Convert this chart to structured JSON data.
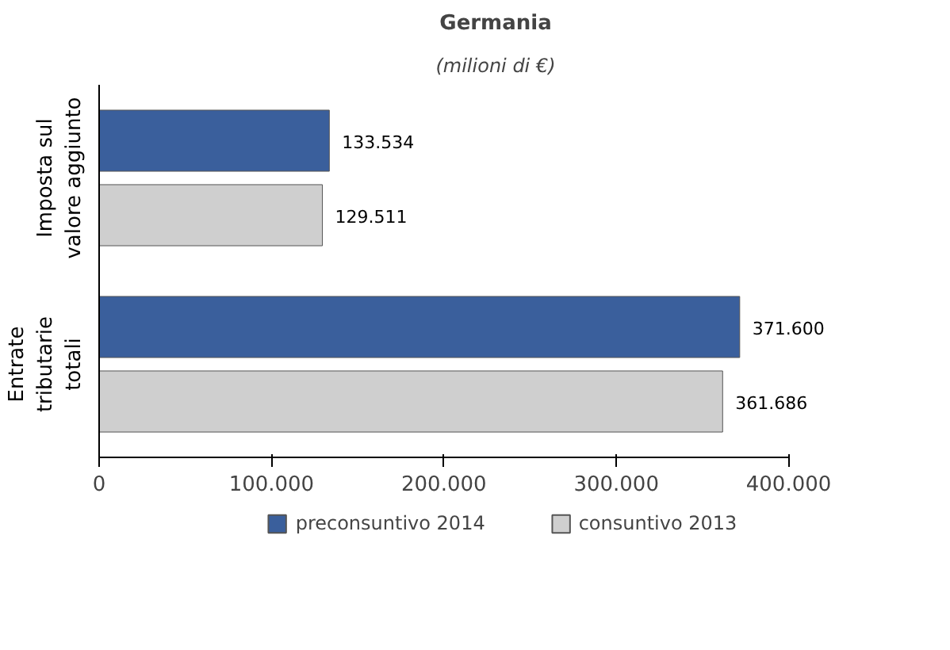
{
  "chart_data": {
    "type": "bar",
    "orientation": "horizontal",
    "title": "Germania",
    "subtitle": "(milioni di €)",
    "categories": [
      "Imposta sul valore aggiunto",
      "Entrate tributarie totali"
    ],
    "series": [
      {
        "name": "preconsuntivo 2014",
        "color": "#3a5f9c",
        "values": [
          133534,
          371600
        ],
        "value_labels": [
          "133.534",
          "371.600"
        ]
      },
      {
        "name": "consuntivo 2013",
        "color": "#cfcfcf",
        "values": [
          129511,
          361686
        ],
        "value_labels": [
          "129.511",
          "361.686"
        ]
      }
    ],
    "xlim": [
      0,
      400000
    ],
    "xticks": [
      0,
      {
        "value": 100000,
        "label": "100.000"
      },
      {
        "value": 200000,
        "label": "200.000"
      },
      {
        "value": 300000,
        "label": "300.000"
      },
      {
        "value": 400000,
        "label": "400.000"
      }
    ],
    "legend": "bottom"
  }
}
